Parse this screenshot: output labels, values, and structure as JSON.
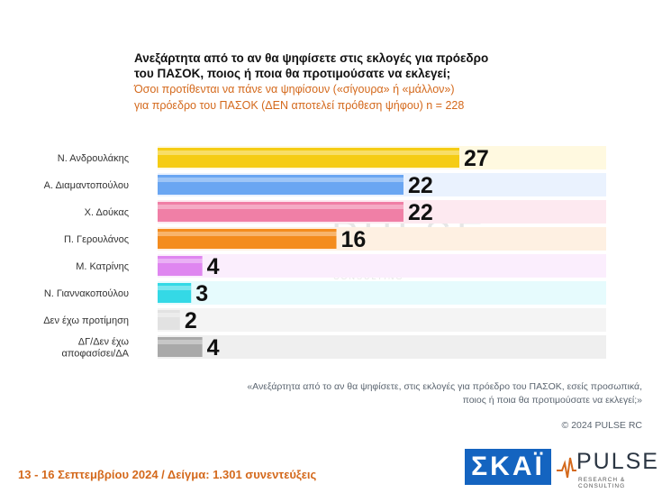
{
  "header": {
    "title_line1": "Ανεξάρτητα από το αν θα ψηφίσετε στις εκλογές για πρόεδρο",
    "title_line2": "του ΠΑΣΟΚ, ποιος ή ποια θα προτιμούσατε να εκλεγεί;",
    "subtitle_line1": "Όσοι προτίθενται να πάνε να ψηφίσουν («σίγουρα» ή «μάλλον»)",
    "subtitle_line2": "για πρόεδρο του ΠΑΣΟΚ   (ΔΕΝ αποτελεί πρόθεση ψήφου)    n = 228"
  },
  "chart_data": {
    "type": "bar",
    "orientation": "horizontal",
    "categories": [
      [
        "Ν. Ανδρουλάκης"
      ],
      [
        "Α. Διαμαντοπούλου"
      ],
      [
        "Χ. Δούκας"
      ],
      [
        "Π. Γερουλάνος"
      ],
      [
        "Μ. Κατρίνης"
      ],
      [
        "Ν. Γιαννακοπούλου"
      ],
      [
        "Δεν έχω προτίμηση"
      ],
      [
        "ΔΓ/Δεν έχω",
        "αποφασίσει/ΔΑ"
      ]
    ],
    "values": [
      27,
      22,
      22,
      16,
      4,
      3,
      2,
      4
    ],
    "colors": [
      "#f5cc14",
      "#6aa6f2",
      "#f07fa6",
      "#f48c1e",
      "#df86f0",
      "#34d9e6",
      "#e2e2e2",
      "#a9a9a9"
    ],
    "track_colors": [
      "#fff9e0",
      "#eaf2fe",
      "#fde9f0",
      "#fef0e2",
      "#fbeefd",
      "#e6fbfd",
      "#f4f4f4",
      "#efefef"
    ],
    "xlim": [
      0,
      40
    ],
    "grid": false,
    "legend": "none"
  },
  "watermark": {
    "text": "PULSE",
    "sub": "RESEARCH & CONSULTING"
  },
  "notes": {
    "question_line1": "«Ανεξάρτητα από το αν θα ψηφίσετε, στις εκλογές για πρόεδρο του ΠΑΣΟΚ, εσείς προσωπικά,",
    "question_line2": "ποιος ή ποια θα προτιμούσατε να εκλεγεί;»",
    "copyright": "© 2024 PULSE RC",
    "footer": "13 - 16 Σεπτεμβρίου 2024  /  Δείγμα:  1.301 συνεντεύξεις"
  },
  "logos": {
    "skai": "ΣΚΑΪ",
    "pulse": "PULSE",
    "pulse_sub": "RESEARCH & CONSULTING"
  }
}
